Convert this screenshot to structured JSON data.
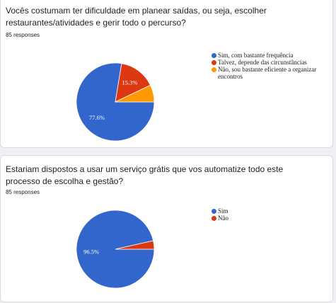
{
  "cards": [
    {
      "question": "Vocês costumam ter dificuldade em planear saídas, ou seja, escolher restaurantes/atividades e gerir todo o percurso?",
      "responses": "85 responses"
    },
    {
      "question": "Estariam dispostos a usar um serviço grátis que vos automatize todo este processo de escolha e gestão?",
      "responses": "85 responses"
    }
  ],
  "chart_data": [
    {
      "type": "pie",
      "categories": [
        "Sim, com bastante frequência",
        "Talvez, depende das circunstâncias",
        "Não, sou bastante eficiente a organizar encontros"
      ],
      "values": [
        77.6,
        15.3,
        7.1
      ],
      "labels": [
        "77.6%",
        "15.3%",
        ""
      ],
      "colors": [
        "#3366cc",
        "#dc3912",
        "#ff9900"
      ],
      "legend": "right"
    },
    {
      "type": "pie",
      "categories": [
        "Sim",
        "Não"
      ],
      "values": [
        96.5,
        3.5
      ],
      "labels": [
        "96.5%",
        ""
      ],
      "colors": [
        "#3366cc",
        "#dc3912"
      ],
      "legend": "right"
    }
  ]
}
